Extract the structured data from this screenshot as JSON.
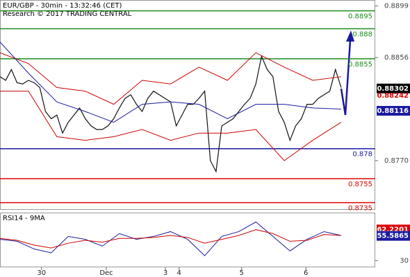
{
  "header": {
    "title": "EUR/GBP - 30min - 13:32:46 (CET)",
    "subtitle": "Research © 2017 TRADING CENTRAL"
  },
  "chart_data": [
    {
      "type": "line",
      "xlim": [
        0,
        66
      ],
      "ylim": [
        0.8729,
        0.8904
      ],
      "yticks": [
        0.8899,
        0.8856,
        {
          "value": 0.877,
          "label": "0.8770"
        }
      ],
      "series": [
        {
          "color": "#111111",
          "x": [
            0,
            1,
            2,
            3,
            4,
            5,
            6,
            7,
            8,
            9,
            10,
            11,
            12,
            13,
            14,
            15,
            16,
            17,
            18,
            19,
            20,
            21,
            22,
            23,
            24,
            25,
            26,
            27,
            28,
            29,
            30,
            31,
            32,
            33,
            34,
            35,
            36,
            37,
            38,
            39,
            40,
            41,
            42,
            43,
            44,
            45,
            46,
            47,
            48,
            49,
            50,
            51,
            52,
            53,
            54,
            55,
            56,
            57,
            58,
            59,
            60
          ],
          "values": [
            0.884,
            0.8837,
            0.8846,
            0.8835,
            0.8834,
            0.8837,
            0.8835,
            0.8831,
            0.8811,
            0.8805,
            0.8808,
            0.8793,
            0.8802,
            0.8808,
            0.8814,
            0.8805,
            0.8799,
            0.8796,
            0.8796,
            0.8799,
            0.8805,
            0.8814,
            0.8822,
            0.8825,
            0.8817,
            0.8811,
            0.8822,
            0.8828,
            0.8825,
            0.8822,
            0.8819,
            0.8799,
            0.8808,
            0.8817,
            0.8817,
            0.8822,
            0.8828,
            0.877,
            0.8761,
            0.8799,
            0.8802,
            0.8805,
            0.8811,
            0.8817,
            0.8822,
            0.8834,
            0.8857,
            0.8846,
            0.884,
            0.8811,
            0.8802,
            0.8787,
            0.8799,
            0.8805,
            0.8817,
            0.8817,
            0.8822,
            0.8825,
            0.8828,
            0.8846,
            0.8831
          ]
        },
        {
          "color": "#cc0000",
          "x": [
            0,
            5,
            10,
            15,
            20,
            25,
            30,
            35,
            40,
            45,
            50,
            55,
            60
          ],
          "values": [
            0.886,
            0.8851,
            0.8831,
            0.8828,
            0.8817,
            0.8837,
            0.8834,
            0.8848,
            0.8837,
            0.886,
            0.8848,
            0.8837,
            0.884
          ]
        },
        {
          "color": "#cc0000",
          "x": [
            0,
            5,
            10,
            15,
            20,
            25,
            30,
            35,
            40,
            45,
            50,
            55,
            60
          ],
          "values": [
            0.8828,
            0.8828,
            0.879,
            0.8787,
            0.879,
            0.8796,
            0.8787,
            0.8793,
            0.8793,
            0.8796,
            0.877,
            0.8787,
            0.8802
          ]
        },
        {
          "color": "#1a1aa0",
          "x": [
            0,
            5,
            10,
            15,
            20,
            25,
            30,
            35,
            40,
            45,
            50,
            55,
            60
          ],
          "values": [
            0.8869,
            0.8843,
            0.8819,
            0.8811,
            0.8802,
            0.8817,
            0.8819,
            0.8817,
            0.8805,
            0.8817,
            0.8817,
            0.8814,
            0.8813
          ]
        }
      ],
      "levels": [
        {
          "value": 0.8895,
          "color": "#1e8c1e"
        },
        {
          "value": 0.888,
          "color": "#1e8c1e"
        },
        {
          "value": 0.8855,
          "color": "#1e8c1e"
        },
        {
          "value": 0.878,
          "color": "#1a1aa0"
        },
        {
          "value": 0.8755,
          "color": "#dd0000"
        },
        {
          "value": 0.8735,
          "color": "#dd0000"
        }
      ],
      "price_labels": [
        {
          "value": 0.88302,
          "color": "#000000",
          "boxed": true
        },
        {
          "value": 0.88242,
          "color": "#dd0000",
          "boxed": false
        },
        {
          "value": 0.88116,
          "color": "#1a1aa0",
          "boxed": true
        }
      ]
    },
    {
      "type": "line",
      "title": "RSI14 - 9MA",
      "xlim": [
        0,
        66
      ],
      "ylim": [
        23,
        79
      ],
      "yticks": [
        30
      ],
      "xticks": [
        {
          "value": 7.3,
          "label": "30"
        },
        {
          "value": 18.7,
          "label": "Dec"
        },
        {
          "value": 29.1,
          "label": "3"
        },
        {
          "value": 31.5,
          "label": "4"
        },
        {
          "value": 42.5,
          "label": "5"
        },
        {
          "value": 53.8,
          "label": "6"
        }
      ],
      "series": [
        {
          "color": "#1a1aa0",
          "x": [
            0,
            3,
            6,
            9,
            12,
            15,
            18,
            21,
            24,
            27,
            30,
            33,
            36,
            39,
            42,
            45,
            48,
            51,
            54,
            57,
            60
          ],
          "values": [
            52,
            50,
            42,
            38,
            55,
            52,
            45,
            58,
            52,
            55,
            60,
            52,
            35,
            55,
            60,
            70,
            55,
            40,
            52,
            60,
            56
          ]
        },
        {
          "color": "#cc0000",
          "x": [
            0,
            3,
            6,
            9,
            12,
            15,
            18,
            21,
            24,
            27,
            30,
            33,
            36,
            39,
            42,
            45,
            48,
            51,
            54,
            57,
            60
          ],
          "values": [
            53,
            51,
            46,
            43,
            48,
            51,
            49,
            53,
            53,
            54,
            56,
            54,
            48,
            52,
            56,
            62,
            58,
            50,
            51,
            57,
            56
          ]
        }
      ],
      "price_labels": [
        {
          "value": 62.2201,
          "color": "#dd0000",
          "boxed": true
        },
        {
          "value": 55.5865,
          "color": "#1a1aa0",
          "boxed": true
        }
      ]
    }
  ]
}
